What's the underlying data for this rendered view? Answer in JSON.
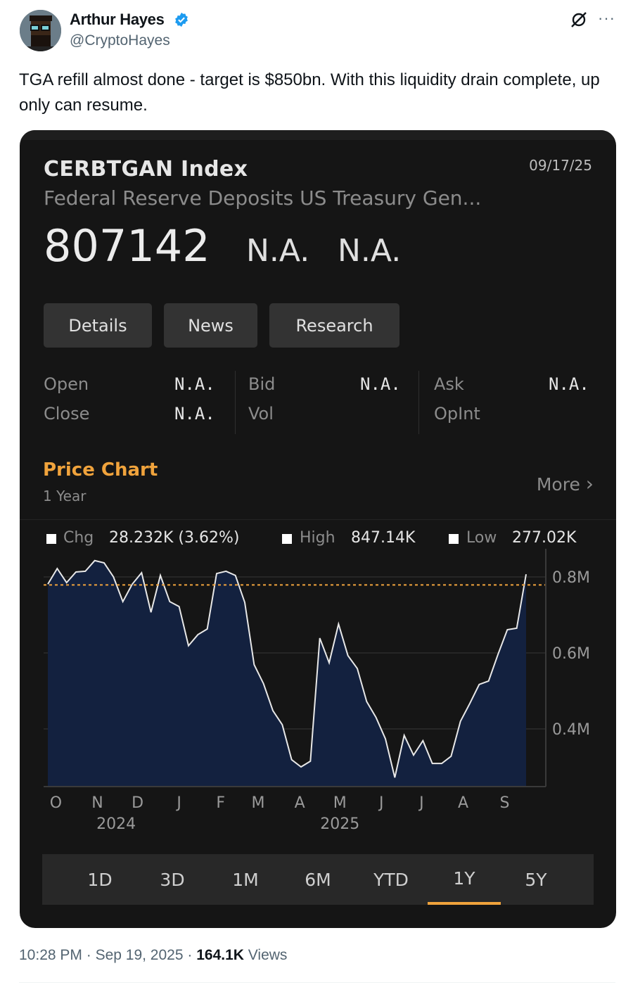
{
  "tweet": {
    "author_name": "Arthur Hayes",
    "handle": "@CryptoHayes",
    "verified": true,
    "text": "TGA refill almost done - target is $850bn. With this liquidity drain complete, up only can resume.",
    "time": "10:28 PM",
    "date": "Sep 19, 2025",
    "views_count": "164.1K",
    "views_label": "Views",
    "separator": "·",
    "more_icon": "more-horizontal-icon",
    "grok_icon": "grok-icon",
    "more_glyph": "···"
  },
  "card": {
    "ticker": "CERBTGAN Index",
    "date": "09/17/25",
    "description": "Federal Reserve Deposits US Treasury Gen...",
    "last_value": "807142",
    "change": "N.A.",
    "change_pct": "N.A.",
    "buttons": [
      "Details",
      "News",
      "Research"
    ],
    "stats": [
      {
        "label": "Open",
        "value": "N.A."
      },
      {
        "label": "Close",
        "value": "N.A."
      },
      {
        "label": "Bid",
        "value": "N.A."
      },
      {
        "label": "Vol",
        "value": ""
      },
      {
        "label": "Ask",
        "value": "N.A."
      },
      {
        "label": "OpInt",
        "value": ""
      }
    ],
    "chart_title": "Price Chart",
    "chart_period": "1 Year",
    "more_label": "More",
    "legend": {
      "chg_label": "Chg",
      "chg_value": "28.232K (3.62%)",
      "high_label": "High",
      "high_value": "847.14K",
      "low_label": "Low",
      "low_value": "277.02K"
    },
    "ranges": [
      "1D",
      "3D",
      "1M",
      "6M",
      "YTD",
      "1Y",
      "5Y"
    ],
    "active_range": "1Y",
    "colors": {
      "accent": "#f0a33c",
      "area_fill": "#13213f",
      "line": "#e8e8e8",
      "background": "#151515"
    }
  },
  "chart_data": {
    "type": "area",
    "x": [
      "2024-09-25",
      "2024-10-02",
      "2024-10-09",
      "2024-10-16",
      "2024-10-23",
      "2024-10-30",
      "2024-11-06",
      "2024-11-13",
      "2024-11-20",
      "2024-11-27",
      "2024-12-04",
      "2024-12-11",
      "2024-12-18",
      "2024-12-25",
      "2025-01-01",
      "2025-01-08",
      "2025-01-15",
      "2025-01-22",
      "2025-01-29",
      "2025-02-05",
      "2025-02-12",
      "2025-02-19",
      "2025-02-26",
      "2025-03-05",
      "2025-03-12",
      "2025-03-19",
      "2025-03-26",
      "2025-04-02",
      "2025-04-09",
      "2025-04-16",
      "2025-04-23",
      "2025-04-30",
      "2025-05-07",
      "2025-05-14",
      "2025-05-21",
      "2025-05-28",
      "2025-06-04",
      "2025-06-11",
      "2025-06-18",
      "2025-06-25",
      "2025-07-02",
      "2025-07-09",
      "2025-07-16",
      "2025-07-23",
      "2025-07-30",
      "2025-08-06",
      "2025-08-13",
      "2025-08-20",
      "2025-08-27",
      "2025-09-03",
      "2025-09-10",
      "2025-09-17"
    ],
    "values": [
      0.781,
      0.822,
      0.785,
      0.813,
      0.815,
      0.843,
      0.837,
      0.8,
      0.735,
      0.781,
      0.811,
      0.707,
      0.804,
      0.735,
      0.722,
      0.619,
      0.648,
      0.663,
      0.809,
      0.815,
      0.804,
      0.733,
      0.569,
      0.519,
      0.448,
      0.411,
      0.319,
      0.3,
      0.315,
      0.639,
      0.574,
      0.676,
      0.593,
      0.559,
      0.472,
      0.43,
      0.374,
      0.272,
      0.383,
      0.331,
      0.369,
      0.309,
      0.309,
      0.328,
      0.42,
      0.467,
      0.517,
      0.526,
      0.596,
      0.661,
      0.665,
      0.807
    ],
    "y_unit": "M",
    "ylim": [
      0.25,
      0.85
    ],
    "y_ticks": [
      "0.8M",
      "0.6M",
      "0.4M"
    ],
    "y_tick_values": [
      0.8,
      0.6,
      0.4
    ],
    "x_tick_labels": [
      "O",
      "N",
      "D",
      "J",
      "F",
      "M",
      "A",
      "M",
      "J",
      "J",
      "A",
      "S"
    ],
    "x_tick_dates": [
      "2024-10-01",
      "2024-11-01",
      "2024-12-01",
      "2025-01-01",
      "2025-02-01",
      "2025-03-01",
      "2025-04-01",
      "2025-05-01",
      "2025-06-01",
      "2025-07-01",
      "2025-08-01",
      "2025-09-01"
    ],
    "year_labels": [
      "2024",
      "2025"
    ],
    "year_label_dates": [
      "2024-11-15",
      "2025-05-01"
    ],
    "reference_line": 0.779,
    "grid": true,
    "legend": "top"
  }
}
